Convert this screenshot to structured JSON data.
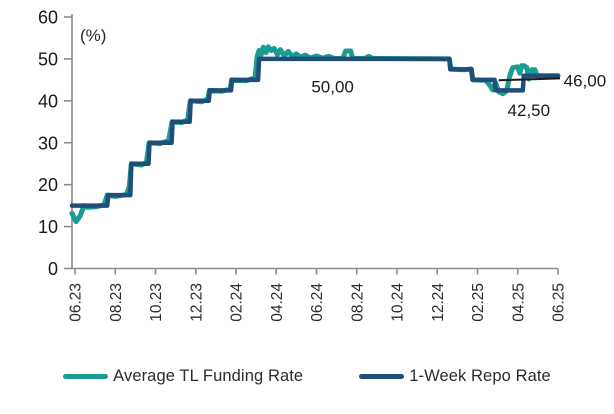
{
  "chart_data": {
    "type": "line",
    "title": "",
    "unit_label": "(%)",
    "y_ticks": [
      0,
      10,
      20,
      30,
      40,
      50,
      60
    ],
    "ylim": [
      0,
      60
    ],
    "x_tick_labels": [
      "06.23",
      "08.23",
      "10.23",
      "12.23",
      "02.24",
      "04.24",
      "06.24",
      "08.24",
      "10.24",
      "12.24",
      "02.25",
      "04.25",
      "06.25"
    ],
    "x_months_range": [
      0,
      24
    ],
    "grid": "off",
    "legend_position": "bottom",
    "series": [
      {
        "name": "Average TL Funding Rate",
        "color": "#189C94",
        "stroke_width": 5,
        "points": [
          [
            -0.15,
            13.2
          ],
          [
            0.05,
            11.2
          ],
          [
            0.25,
            12.5
          ],
          [
            0.45,
            15
          ],
          [
            0.6,
            14.6
          ],
          [
            1.0,
            14.7
          ],
          [
            1.45,
            15.2
          ],
          [
            1.6,
            17.5
          ],
          [
            2.0,
            17.2
          ],
          [
            2.55,
            17.6
          ],
          [
            2.7,
            19.5
          ],
          [
            2.8,
            25
          ],
          [
            3.3,
            24.7
          ],
          [
            3.55,
            25.3
          ],
          [
            3.68,
            30
          ],
          [
            4.2,
            29.8
          ],
          [
            4.65,
            30.5
          ],
          [
            4.82,
            35
          ],
          [
            5.3,
            34.8
          ],
          [
            5.6,
            35.5
          ],
          [
            5.73,
            40
          ],
          [
            6.3,
            39.8
          ],
          [
            6.6,
            40.4
          ],
          [
            6.68,
            42.5
          ],
          [
            7.3,
            42.3
          ],
          [
            7.7,
            42.8
          ],
          [
            7.78,
            45
          ],
          [
            8.5,
            44.8
          ],
          [
            8.95,
            45.5
          ],
          [
            9.05,
            50.5
          ],
          [
            9.15,
            52
          ],
          [
            9.25,
            51
          ],
          [
            9.35,
            52.8
          ],
          [
            9.5,
            51.5
          ],
          [
            9.6,
            52.9
          ],
          [
            9.75,
            52
          ],
          [
            9.9,
            52.5
          ],
          [
            10.05,
            51
          ],
          [
            10.2,
            52.2
          ],
          [
            10.4,
            50.8
          ],
          [
            10.6,
            51.8
          ],
          [
            10.8,
            50.6
          ],
          [
            11.0,
            51.2
          ],
          [
            11.2,
            50.4
          ],
          [
            11.45,
            50.9
          ],
          [
            11.7,
            50.2
          ],
          [
            12.0,
            50.7
          ],
          [
            12.3,
            50.2
          ],
          [
            12.6,
            50.6
          ],
          [
            12.9,
            50.1
          ],
          [
            13.3,
            50.1
          ],
          [
            13.45,
            51.9
          ],
          [
            13.7,
            51.9
          ],
          [
            13.8,
            50.1
          ],
          [
            14.4,
            50.1
          ],
          [
            14.6,
            50.6
          ],
          [
            14.8,
            50.1
          ],
          [
            18.6,
            50
          ],
          [
            18.68,
            47.6
          ],
          [
            19.3,
            47.4
          ],
          [
            19.68,
            47.6
          ],
          [
            19.78,
            45
          ],
          [
            20.4,
            44.9
          ],
          [
            20.6,
            43.8
          ],
          [
            20.75,
            42.6
          ],
          [
            20.9,
            44.3
          ],
          [
            21.05,
            42.2
          ],
          [
            21.25,
            41.7
          ],
          [
            21.45,
            42.4
          ],
          [
            21.6,
            45.9
          ],
          [
            21.75,
            47.9
          ],
          [
            22.0,
            48.1
          ],
          [
            22.1,
            46.6
          ],
          [
            22.2,
            48.4
          ],
          [
            22.35,
            48.3
          ],
          [
            22.45,
            47.9
          ],
          [
            22.55,
            45.2
          ],
          [
            22.7,
            47.4
          ],
          [
            22.85,
            47.4
          ],
          [
            22.95,
            46
          ],
          [
            24,
            46
          ]
        ]
      },
      {
        "name": "1-Week Repo Rate",
        "color": "#1F4E79",
        "stroke_width": 4.5,
        "points": [
          [
            -0.15,
            15
          ],
          [
            1.6,
            15
          ],
          [
            1.65,
            17.5
          ],
          [
            2.75,
            17.5
          ],
          [
            2.8,
            25
          ],
          [
            3.65,
            25
          ],
          [
            3.7,
            30
          ],
          [
            4.8,
            30
          ],
          [
            4.85,
            35
          ],
          [
            5.7,
            35
          ],
          [
            5.75,
            40
          ],
          [
            6.65,
            40
          ],
          [
            6.7,
            42.5
          ],
          [
            7.75,
            42.5
          ],
          [
            7.8,
            45
          ],
          [
            9.1,
            45
          ],
          [
            9.15,
            50
          ],
          [
            18.6,
            50
          ],
          [
            18.65,
            47.5
          ],
          [
            19.7,
            47.5
          ],
          [
            19.75,
            45
          ],
          [
            20.85,
            45
          ],
          [
            20.9,
            42.5
          ],
          [
            22.25,
            42.5
          ],
          [
            22.3,
            46
          ],
          [
            24,
            46
          ]
        ]
      }
    ],
    "annotations": [
      {
        "id": "plateau-label",
        "text": "50,00",
        "month": 12.8,
        "value": 43.4,
        "anchor": "middle"
      },
      {
        "id": "trough-label",
        "text": "42,50",
        "month": 22.55,
        "value": 37.8,
        "anchor": "middle"
      },
      {
        "id": "latest-label",
        "text": "46,00",
        "month": 24.28,
        "value": 44.8,
        "anchor": "start"
      }
    ],
    "callout_line": {
      "from": {
        "month": 21.05,
        "value": 44.9
      },
      "to": {
        "month": 24.1,
        "value": 45.35
      },
      "color": "#1a1a1a"
    }
  },
  "colors": {
    "axis": "#8c8c8c",
    "y_tick_text": "#1a1a1a",
    "x_tick_text": "#2b2b2b",
    "annotation_text": "#1a1a1a",
    "background": "#ffffff"
  }
}
